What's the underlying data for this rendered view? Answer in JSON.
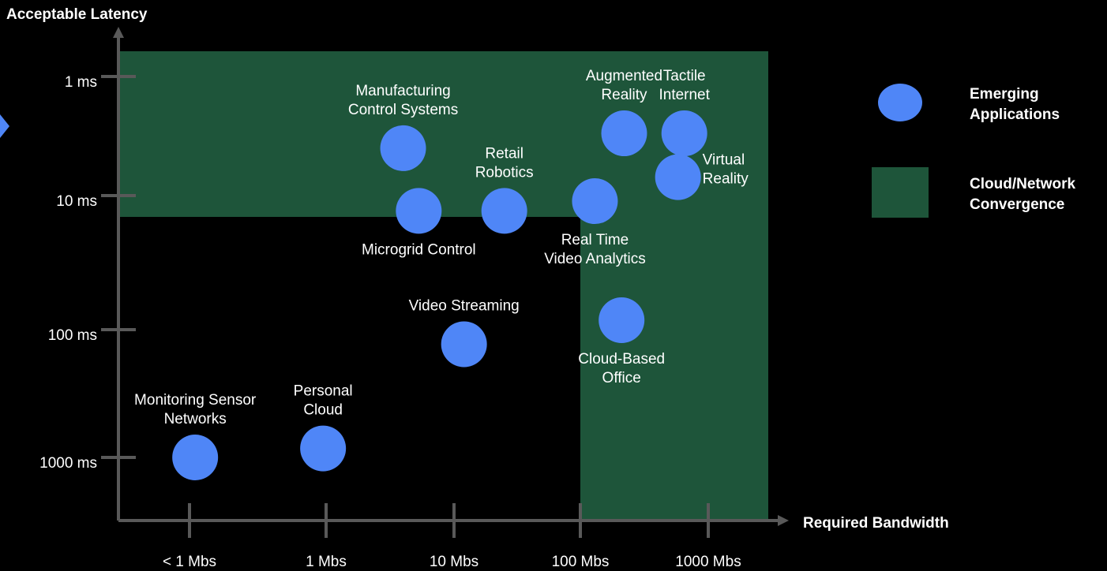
{
  "chart_data": {
    "type": "scatter",
    "title": "",
    "xlabel": "Required Bandwidth",
    "ylabel": "Acceptable Latency",
    "x_scale": "log",
    "y_scale": "log",
    "x_ticks": [
      {
        "value": 0.1,
        "label": "< 1 Mbs"
      },
      {
        "value": 1,
        "label": "1 Mbs"
      },
      {
        "value": 10,
        "label": "10 Mbs"
      },
      {
        "value": 100,
        "label": "100 Mbs"
      },
      {
        "value": 1000,
        "label": "1000 Mbs"
      }
    ],
    "y_ticks": [
      {
        "value": 1,
        "label": "1 ms"
      },
      {
        "value": 10,
        "label": "10 ms"
      },
      {
        "value": 100,
        "label": "100 ms"
      },
      {
        "value": 1000,
        "label": "1000 ms"
      }
    ],
    "xlim": [
      0.05,
      3000
    ],
    "ylim": [
      3000,
      0.5
    ],
    "grid": false,
    "legend_position": "right",
    "series": [
      {
        "name": "Emerging Applications",
        "color": "#4f86f7",
        "points": [
          {
            "label": [
              "Manufacturing",
              "Control Systems"
            ],
            "x": 4,
            "y": 4,
            "label_position": "above"
          },
          {
            "label": [
              "Microgrid Control"
            ],
            "x": 5.3,
            "y": 13,
            "label_position": "below"
          },
          {
            "label": [
              "Retail",
              "Robotics"
            ],
            "x": 25,
            "y": 13,
            "label_position": "above"
          },
          {
            "label": [
              "Real Time",
              "Video Analytics"
            ],
            "x": 130,
            "y": 11,
            "label_position": "below"
          },
          {
            "label": [
              "Augmented",
              "Reality"
            ],
            "x": 220,
            "y": 3,
            "label_position": "above"
          },
          {
            "label": [
              "Tactile",
              "Internet"
            ],
            "x": 650,
            "y": 3,
            "label_position": "above"
          },
          {
            "label": [
              "Virtual",
              "Reality"
            ],
            "x": 580,
            "y": 7,
            "label_position": "right"
          },
          {
            "label": [
              "Video Streaming"
            ],
            "x": 12,
            "y": 130,
            "label_position": "above"
          },
          {
            "label": [
              "Cloud-Based",
              "Office"
            ],
            "x": 210,
            "y": 85,
            "label_position": "below"
          },
          {
            "label": [
              "Monitoring Sensor",
              "Networks"
            ],
            "x": 0.11,
            "y": 1000,
            "label_position": "above"
          },
          {
            "label": [
              "Personal",
              "Cloud"
            ],
            "x": 0.95,
            "y": 850,
            "label_position": "above"
          }
        ]
      }
    ],
    "regions": [
      {
        "name": "Cloud/Network Convergence",
        "color": "#1e553a",
        "x_range": [
          0.05,
          2500
        ],
        "y_range": [
          0.6,
          15
        ]
      },
      {
        "name": "Cloud/Network Convergence",
        "color": "#1e553a",
        "x_range": [
          100,
          2500
        ],
        "y_range": [
          15,
          2500
        ]
      }
    ],
    "legend": [
      {
        "label": [
          "Emerging",
          "Applications"
        ],
        "shape": "circle",
        "color": "#4f86f7"
      },
      {
        "label": [
          "Cloud/Network",
          "Convergence"
        ],
        "shape": "square",
        "color": "#1e553a"
      }
    ]
  }
}
